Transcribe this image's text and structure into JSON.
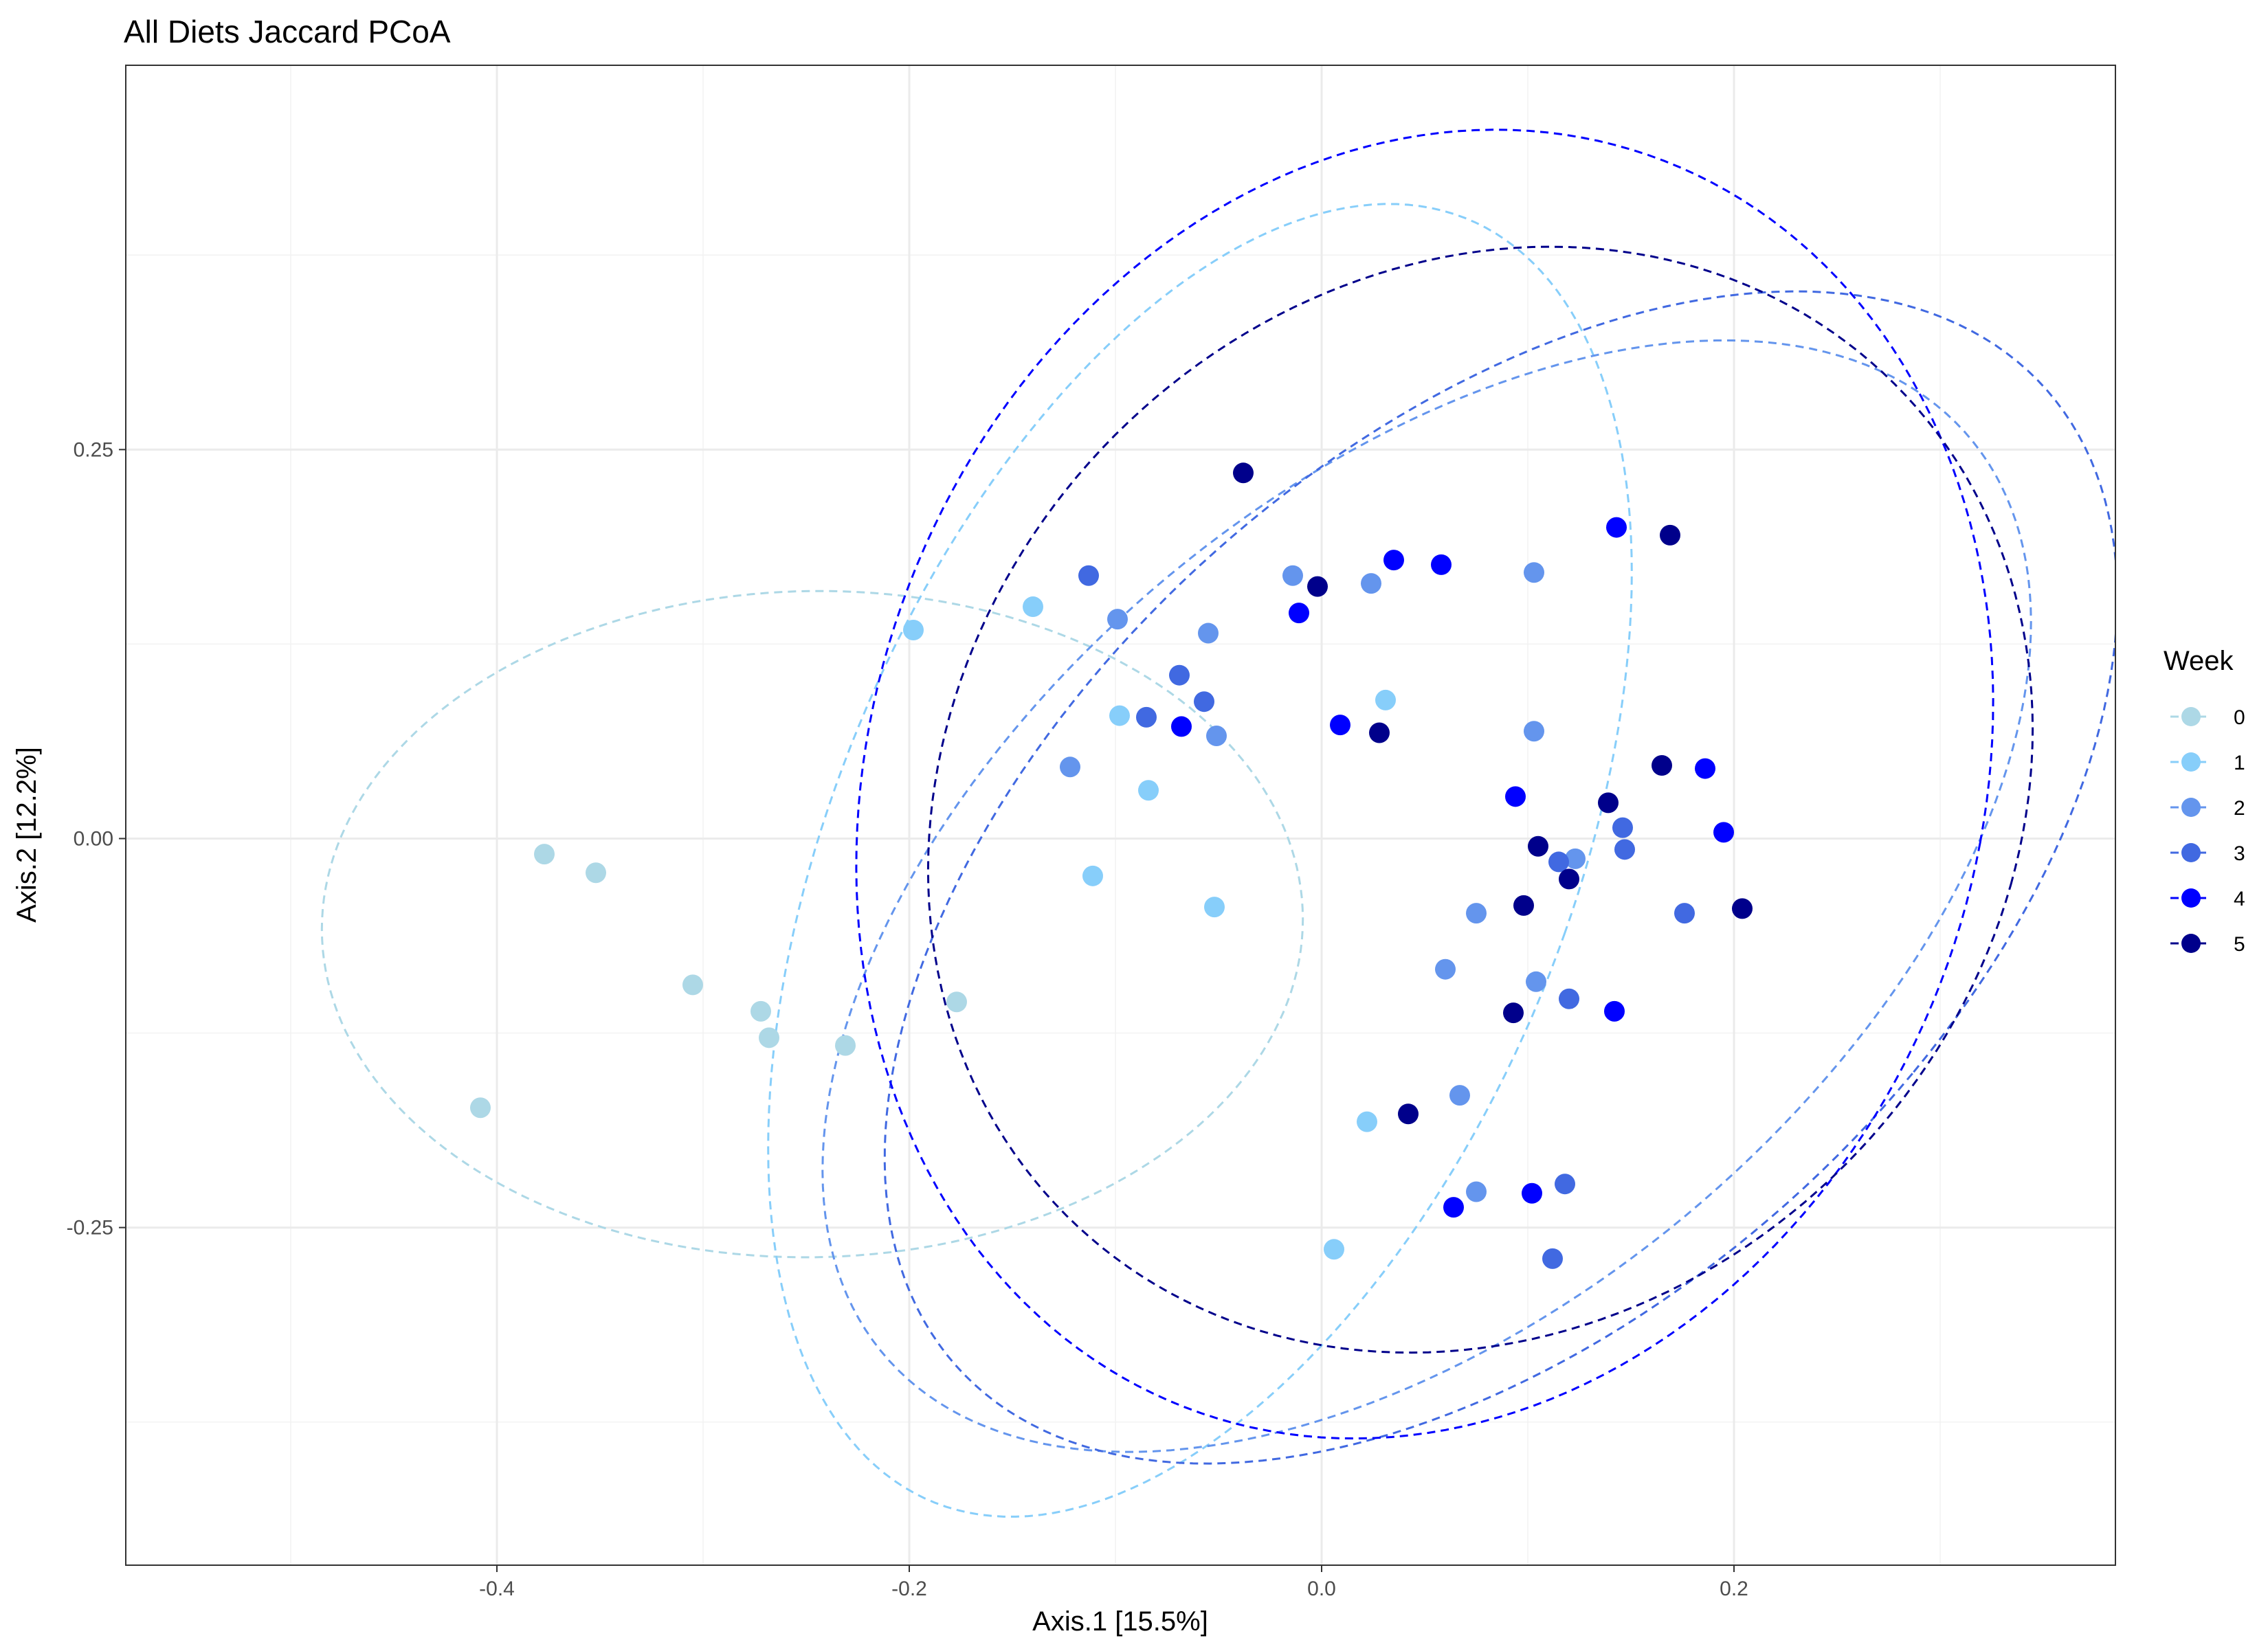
{
  "chart_data": {
    "type": "scatter",
    "title": "All Diets Jaccard PCoA",
    "xlabel": "Axis.1   [15.5%]",
    "ylabel": "Axis.2   [12.2%]",
    "xlim": [
      -0.58,
      0.385
    ],
    "ylim": [
      -0.467,
      0.497
    ],
    "x_ticks": [
      -0.4,
      -0.2,
      0.0,
      0.2
    ],
    "x_tick_labels": [
      "-0.4",
      "-0.2",
      "0.0",
      "0.2"
    ],
    "y_ticks": [
      -0.25,
      0.0,
      0.25
    ],
    "y_tick_labels": [
      "-0.25",
      "0.00",
      "0.25"
    ],
    "grid": true,
    "legend": {
      "title": "Week",
      "position": "right"
    },
    "ellipse_style": "dashed",
    "series": [
      {
        "name": "0",
        "color": "#ADD8E6",
        "points": [
          [
            -0.377,
            -0.01
          ],
          [
            -0.352,
            -0.022
          ],
          [
            -0.305,
            -0.094
          ],
          [
            -0.272,
            -0.111
          ],
          [
            -0.268,
            -0.128
          ],
          [
            -0.231,
            -0.133
          ],
          [
            -0.177,
            -0.105
          ],
          [
            -0.408,
            -0.173
          ]
        ],
        "ellipse": {
          "cx": -0.247,
          "cy": -0.055,
          "rx": 0.238,
          "ry": 0.214,
          "angle": -176
        }
      },
      {
        "name": "1",
        "color": "#87CEFA",
        "points": [
          [
            -0.198,
            0.134
          ],
          [
            -0.14,
            0.149
          ],
          [
            -0.098,
            0.079
          ],
          [
            -0.084,
            0.031
          ],
          [
            -0.111,
            -0.024
          ],
          [
            -0.052,
            -0.044
          ],
          [
            0.031,
            0.089
          ],
          [
            0.022,
            -0.182
          ],
          [
            0.006,
            -0.264
          ]
        ],
        "ellipse": {
          "cx": -0.059,
          "cy": -0.014,
          "rx": 0.183,
          "ry": 0.434,
          "angle": -15
        }
      },
      {
        "name": "2",
        "color": "#6495ED",
        "points": [
          [
            -0.099,
            0.141
          ],
          [
            -0.055,
            0.132
          ],
          [
            -0.014,
            0.169
          ],
          [
            0.024,
            0.164
          ],
          [
            -0.122,
            0.046
          ],
          [
            -0.051,
            0.066
          ],
          [
            0.103,
            0.069
          ],
          [
            0.103,
            0.171
          ],
          [
            0.123,
            -0.013
          ],
          [
            0.075,
            -0.048
          ],
          [
            0.06,
            -0.084
          ],
          [
            0.104,
            -0.092
          ],
          [
            0.067,
            -0.165
          ],
          [
            0.075,
            -0.227
          ]
        ],
        "ellipse": {
          "cx": 0.051,
          "cy": -0.037,
          "rx": 0.226,
          "ry": 0.403,
          "angle": -34
        }
      },
      {
        "name": "3",
        "color": "#4169E1",
        "points": [
          [
            -0.113,
            0.169
          ],
          [
            -0.069,
            0.105
          ],
          [
            -0.057,
            0.088
          ],
          [
            -0.085,
            0.078
          ],
          [
            0.115,
            -0.015
          ],
          [
            0.146,
            0.007
          ],
          [
            0.147,
            -0.007
          ],
          [
            0.12,
            -0.103
          ],
          [
            0.176,
            -0.048
          ],
          [
            0.118,
            -0.222
          ],
          [
            0.112,
            -0.27
          ]
        ],
        "ellipse": {
          "cx": 0.087,
          "cy": -0.025,
          "rx": 0.236,
          "ry": 0.419,
          "angle": -32
        }
      },
      {
        "name": "4",
        "color": "#0000FF",
        "points": [
          [
            -0.011,
            0.145
          ],
          [
            0.035,
            0.179
          ],
          [
            0.058,
            0.176
          ],
          [
            -0.068,
            0.072
          ],
          [
            0.009,
            0.073
          ],
          [
            0.143,
            0.2
          ],
          [
            0.186,
            0.045
          ],
          [
            0.195,
            0.004
          ],
          [
            0.094,
            0.027
          ],
          [
            0.142,
            -0.111
          ],
          [
            0.064,
            -0.237
          ],
          [
            0.102,
            -0.228
          ]
        ],
        "ellipse": {
          "cx": 0.05,
          "cy": 0.035,
          "rx": 0.272,
          "ry": 0.423,
          "angle": -8
        }
      },
      {
        "name": "5",
        "color": "#00008B",
        "points": [
          [
            -0.038,
            0.235
          ],
          [
            -0.002,
            0.162
          ],
          [
            0.028,
            0.068
          ],
          [
            0.169,
            0.195
          ],
          [
            0.165,
            0.047
          ],
          [
            0.139,
            0.023
          ],
          [
            0.105,
            -0.005
          ],
          [
            0.098,
            -0.043
          ],
          [
            0.12,
            -0.026
          ],
          [
            0.204,
            -0.045
          ],
          [
            0.093,
            -0.112
          ],
          [
            0.042,
            -0.177
          ]
        ],
        "ellipse": {
          "cx": 0.077,
          "cy": 0.025,
          "rx": 0.263,
          "ry": 0.359,
          "angle": -12
        }
      }
    ]
  }
}
